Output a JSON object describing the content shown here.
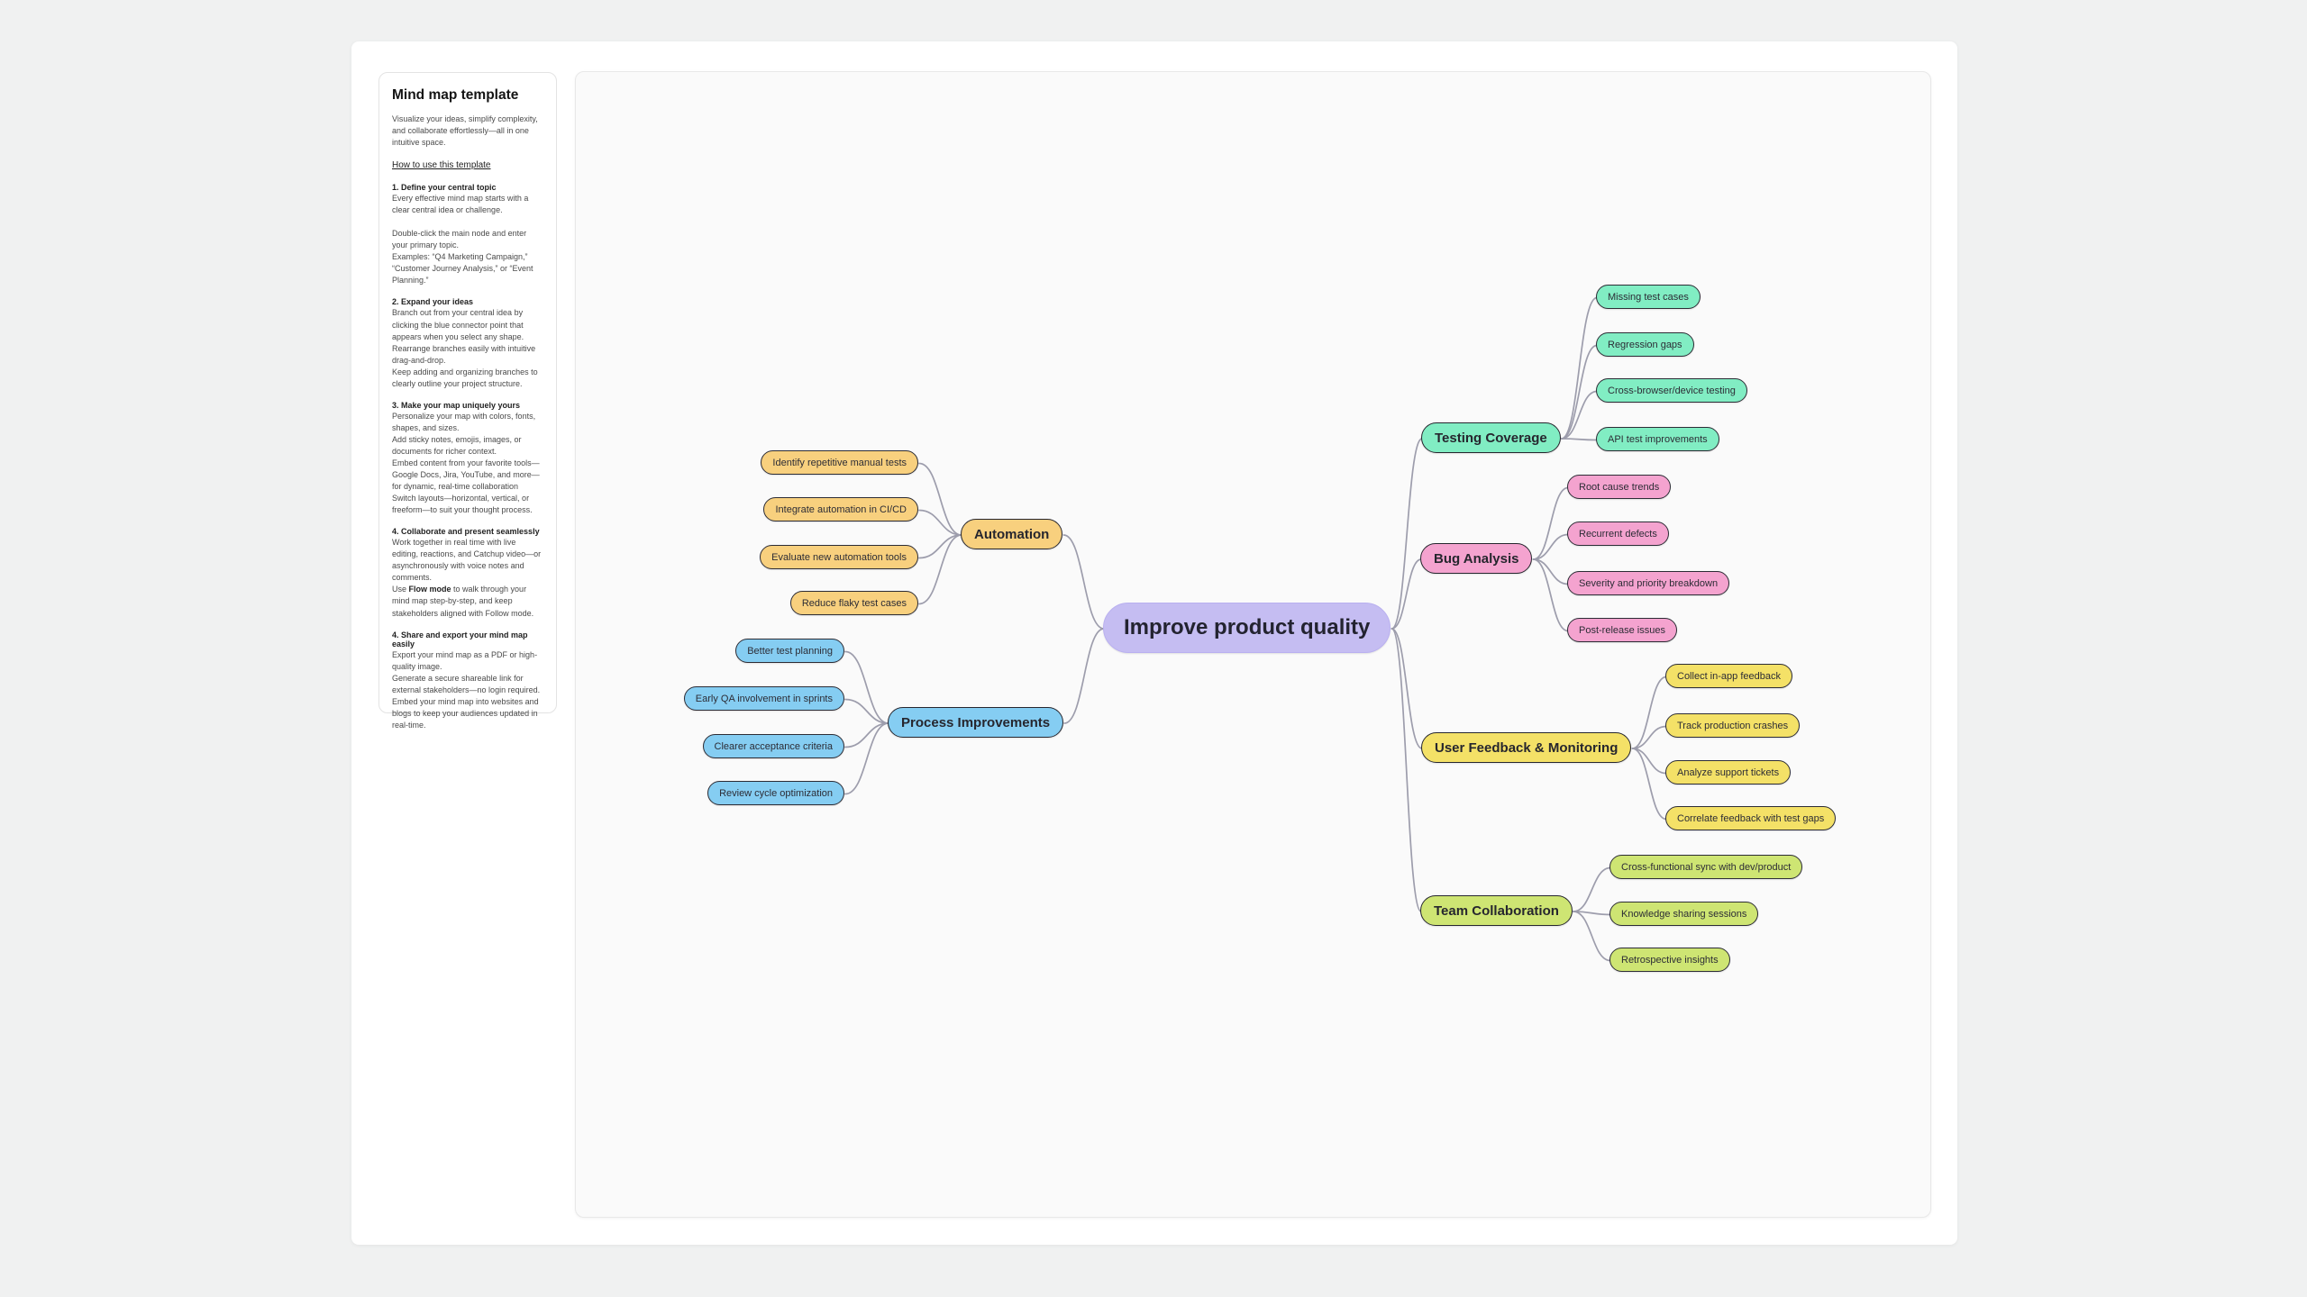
{
  "sidebar": {
    "title": "Mind map template",
    "intro": "Visualize your ideas, simplify complexity, and collaborate effortlessly—all in one intuitive space.",
    "howto_link": "How to use this template",
    "sections": [
      {
        "heading": "1. Define your central topic",
        "paragraphs": [
          "Every effective mind map starts with a clear central idea or challenge.",
          "Double-click the main node and enter your primary topic.\nExamples: “Q4 Marketing Campaign,” “Customer Journey Analysis,” or “Event Planning.”"
        ]
      },
      {
        "heading": "2. Expand your ideas",
        "paragraphs": [
          "Branch out from your central idea by clicking the blue connector point that appears when you select any shape.\nRearrange branches easily with intuitive drag-and-drop.\nKeep adding and organizing branches to clearly outline your project structure."
        ]
      },
      {
        "heading": "3. Make your map uniquely yours",
        "paragraphs": [
          "Personalize your map with colors, fonts, shapes, and sizes.\nAdd sticky notes, emojis, images, or documents for richer context.\nEmbed content from your favorite tools—Google Docs, Jira, YouTube, and more—for dynamic, real-time collaboration\nSwitch layouts—horizontal, vertical, or freeform—to suit your thought process."
        ]
      },
      {
        "heading": "4. Collaborate and present seamlessly",
        "paragraphs": [
          "Work together in real time with live editing, reactions, and Catchup video—or asynchronously with voice notes and comments."
        ],
        "flow": {
          "prefix": "Use ",
          "bold": "Flow mode",
          "rest": " to walk through your mind map step-by-step, and keep stakeholders aligned with Follow mode."
        }
      },
      {
        "heading": "4. Share and export your mind map easily",
        "paragraphs": [
          "Export your mind map as a PDF or high-quality image.\nGenerate a secure shareable link for external stakeholders—no login required.\nEmbed your mind map into websites and blogs to keep your audiences updated in real-time."
        ]
      }
    ]
  },
  "mindmap": {
    "central": {
      "label": "Improve product quality",
      "color": "#c5bdf2"
    },
    "edge_color": "#9d9dac",
    "branches": [
      {
        "label": "Automation",
        "side": "left",
        "color": "#f8d07e",
        "border": "#e9a94f",
        "children": [
          "Identify repetitive manual tests",
          "Integrate automation in CI/CD",
          "Evaluate new automation tools",
          "Reduce flaky test cases"
        ]
      },
      {
        "label": "Process Improvements",
        "side": "left",
        "color": "#85cdf2",
        "border": "#4aace0",
        "children": [
          "Better test planning",
          "Early QA involvement in sprints",
          "Clearer acceptance criteria",
          "Review cycle optimization"
        ]
      },
      {
        "label": "Testing Coverage",
        "side": "right",
        "color": "#81edc3",
        "border": "#50d9a2",
        "children": [
          "Missing test cases",
          "Regression gaps",
          "Cross-browser/device testing",
          "API test improvements"
        ]
      },
      {
        "label": "Bug Analysis",
        "side": "right",
        "color": "#f4a3cf",
        "border": "#eb79bb",
        "children": [
          "Root cause trends",
          "Recurrent defects",
          "Severity and priority breakdown",
          "Post-release issues"
        ]
      },
      {
        "label": "User Feedback & Monitoring",
        "side": "right",
        "color": "#f4e167",
        "border": "#d9bd3e",
        "children": [
          "Collect in-app feedback",
          "Track production crashes",
          "Analyze support tickets",
          "Correlate feedback with test gaps"
        ]
      },
      {
        "label": "Team Collaboration",
        "side": "right",
        "color": "#cee573",
        "border": "#a3c044",
        "children": [
          "Cross-functional sync with dev/product",
          "Knowledge sharing sessions",
          "Retrospective insights"
        ]
      }
    ]
  }
}
